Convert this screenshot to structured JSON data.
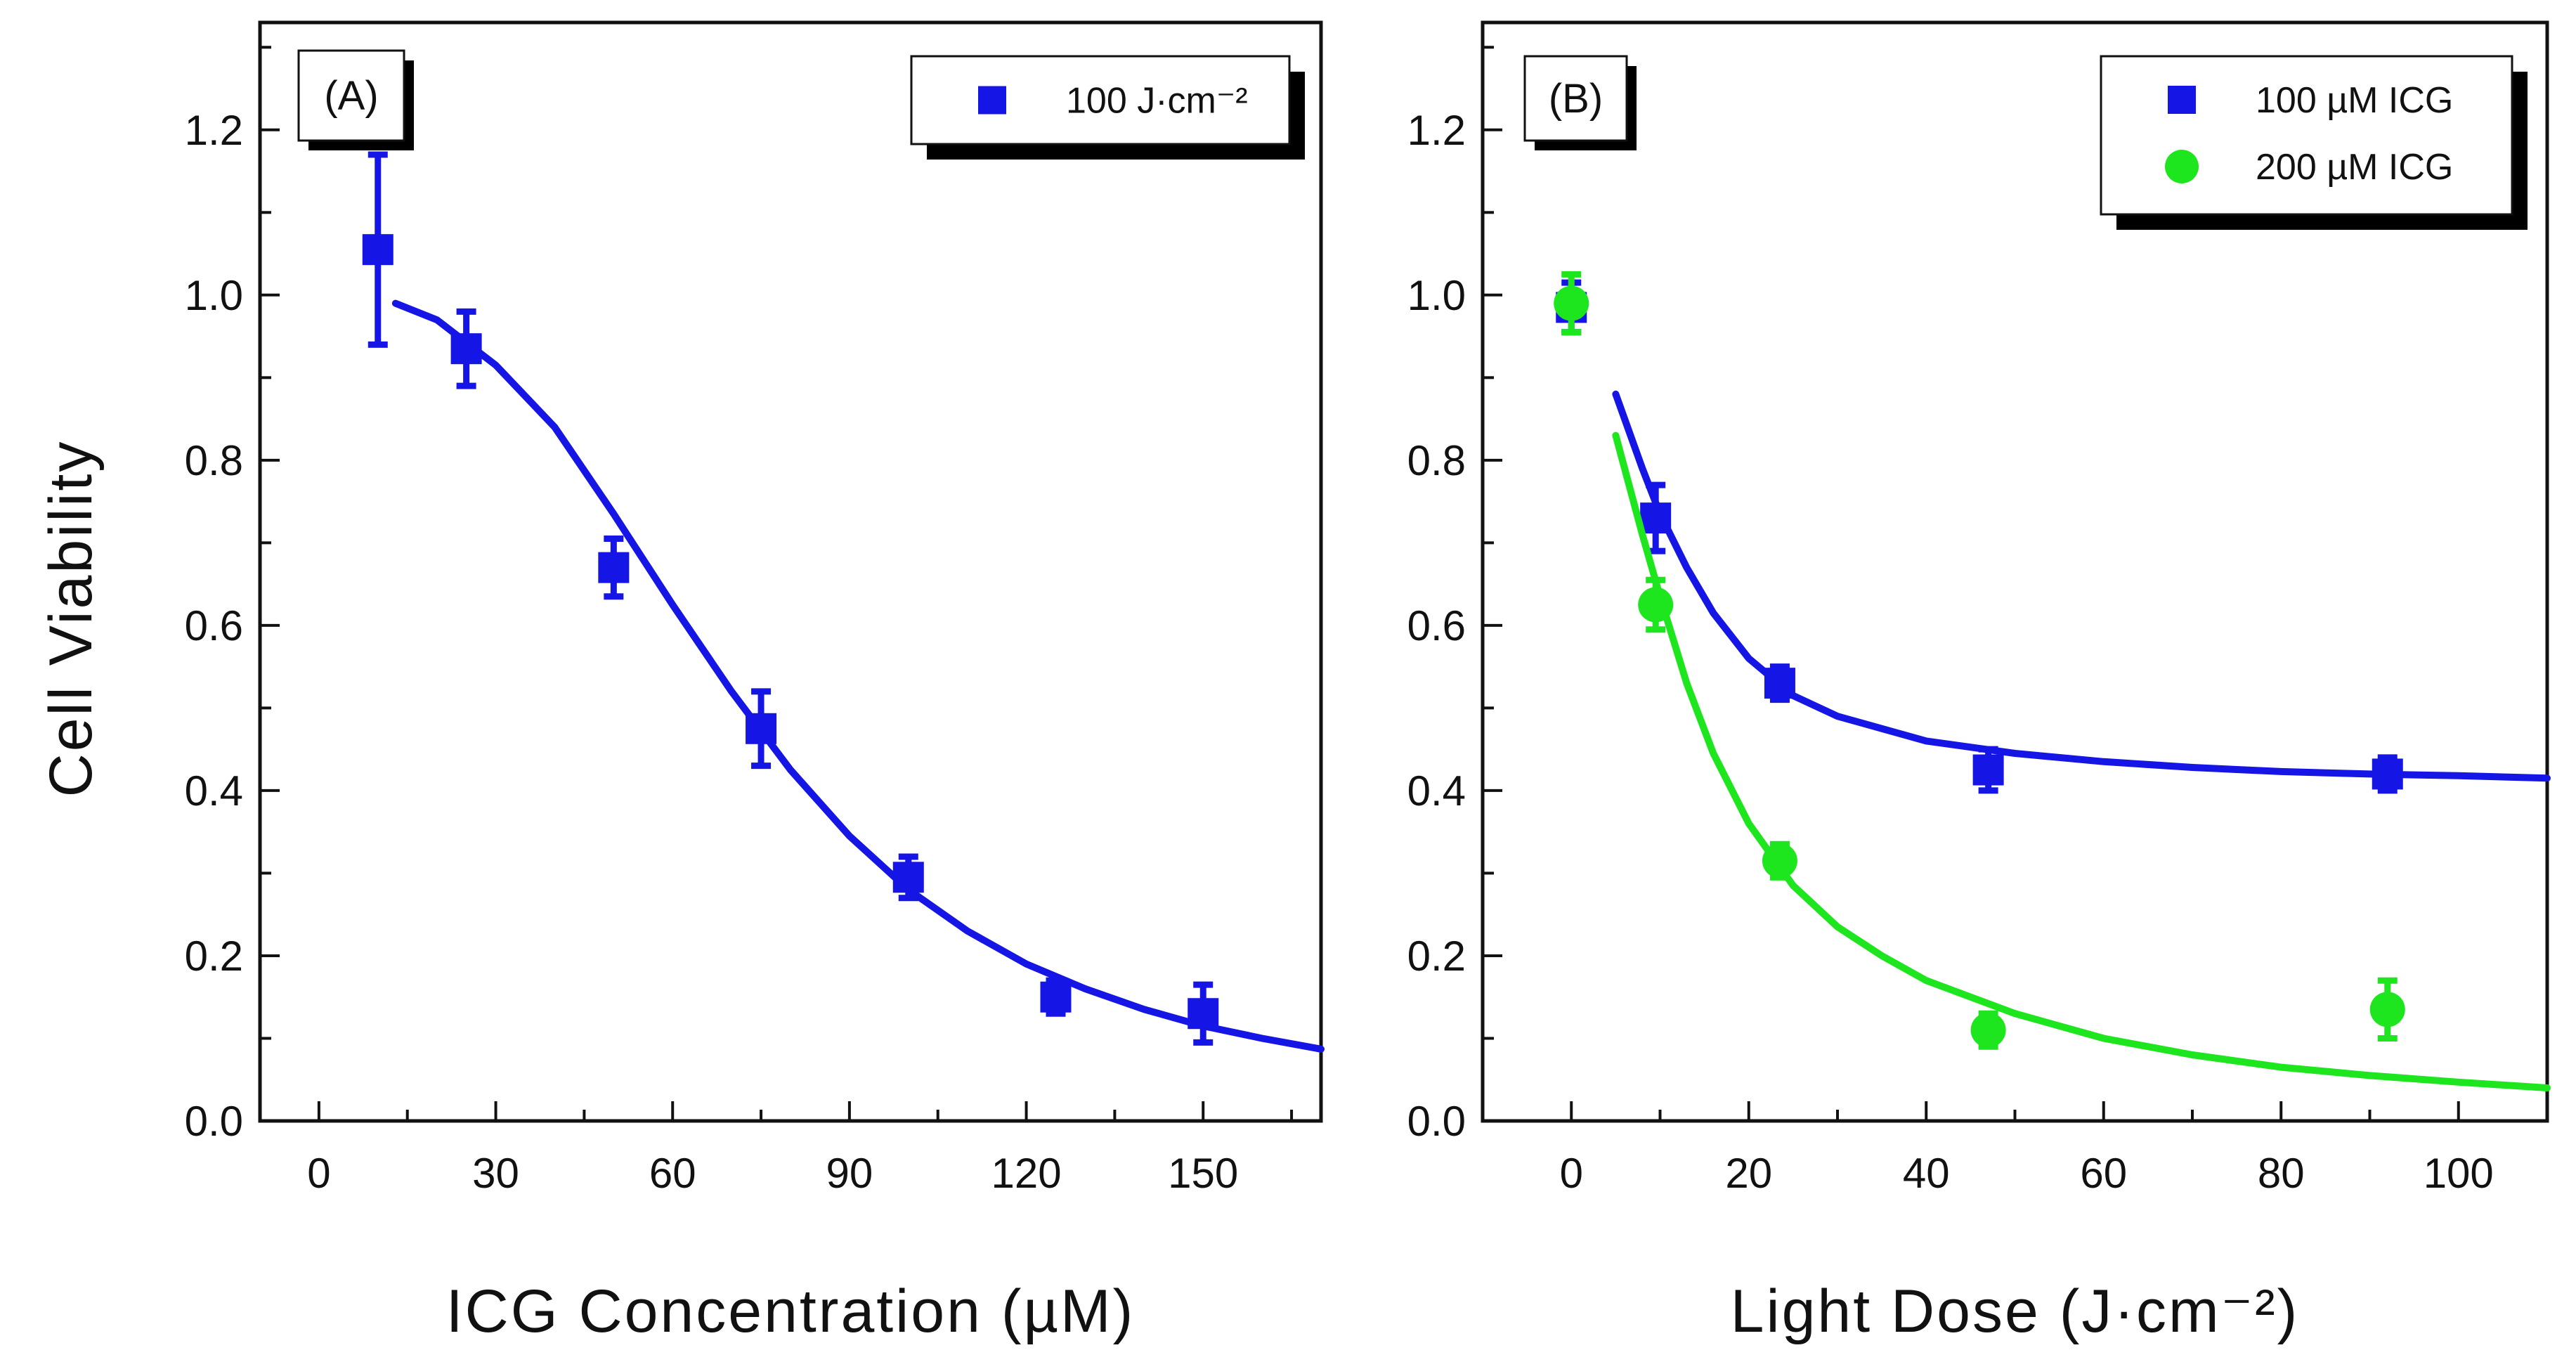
{
  "colors": {
    "blue": "#1515e6",
    "green": "#1ee61e",
    "axis": "#111111"
  },
  "ylabel": "Cell Viability",
  "chart_data": [
    {
      "type": "scatter",
      "panel_label": "(A)",
      "xlabel": "ICG Concentration (µM)",
      "ylabel": "Cell Viability",
      "xlim": [
        -10,
        170
      ],
      "ylim": [
        0,
        1.33
      ],
      "xticks": [
        0,
        30,
        60,
        90,
        120,
        150
      ],
      "yticks": [
        0.0,
        0.2,
        0.4,
        0.6,
        0.8,
        1.0,
        1.2
      ],
      "legend_position": "top-right",
      "series": [
        {
          "name": "100 J·cm⁻²",
          "marker": "square",
          "color": "#1515e6",
          "points": [
            {
              "x": 10,
              "y": 1.055,
              "err": 0.115
            },
            {
              "x": 25,
              "y": 0.935,
              "err": 0.045
            },
            {
              "x": 50,
              "y": 0.67,
              "err": 0.035
            },
            {
              "x": 75,
              "y": 0.475,
              "err": 0.045
            },
            {
              "x": 100,
              "y": 0.295,
              "err": 0.025
            },
            {
              "x": 125,
              "y": 0.15,
              "err": 0.02
            },
            {
              "x": 150,
              "y": 0.13,
              "err": 0.035
            }
          ],
          "fit": {
            "x": [
              13,
              20,
              30,
              40,
              50,
              60,
              70,
              80,
              90,
              100,
              110,
              120,
              130,
              140,
              150,
              160,
              170
            ],
            "y": [
              0.99,
              0.97,
              0.915,
              0.84,
              0.735,
              0.625,
              0.52,
              0.425,
              0.345,
              0.28,
              0.23,
              0.19,
              0.16,
              0.135,
              0.115,
              0.1,
              0.087
            ]
          }
        }
      ]
    },
    {
      "type": "scatter",
      "panel_label": "(B)",
      "xlabel": "Light Dose (J·cm⁻²)",
      "ylabel": "Cell Viability",
      "xlim": [
        -10,
        110
      ],
      "ylim": [
        0,
        1.33
      ],
      "xticks": [
        0,
        20,
        40,
        60,
        80,
        100
      ],
      "yticks": [
        0.0,
        0.2,
        0.4,
        0.6,
        0.8,
        1.0,
        1.2
      ],
      "legend_position": "top-right",
      "series": [
        {
          "name": "100 µM ICG",
          "marker": "square",
          "color": "#1515e6",
          "points": [
            {
              "x": 0,
              "y": 0.985,
              "err": 0.03
            },
            {
              "x": 9.5,
              "y": 0.73,
              "err": 0.04
            },
            {
              "x": 23.5,
              "y": 0.53,
              "err": 0.02
            },
            {
              "x": 47,
              "y": 0.425,
              "err": 0.025
            },
            {
              "x": 92,
              "y": 0.42,
              "err": 0.02
            }
          ],
          "fit": {
            "x": [
              5,
              8,
              10,
              13,
              16,
              20,
              25,
              30,
              40,
              50,
              60,
              70,
              80,
              90,
              100,
              110
            ],
            "y": [
              0.88,
              0.79,
              0.735,
              0.67,
              0.615,
              0.56,
              0.515,
              0.49,
              0.46,
              0.445,
              0.435,
              0.428,
              0.423,
              0.42,
              0.418,
              0.415
            ]
          }
        },
        {
          "name": "200 µM ICG",
          "marker": "circle",
          "color": "#1ee61e",
          "points": [
            {
              "x": 0,
              "y": 0.99,
              "err": 0.035
            },
            {
              "x": 9.5,
              "y": 0.625,
              "err": 0.03
            },
            {
              "x": 23.5,
              "y": 0.315,
              "err": 0.02
            },
            {
              "x": 47,
              "y": 0.11,
              "err": 0.02
            },
            {
              "x": 92,
              "y": 0.135,
              "err": 0.035
            }
          ],
          "fit": {
            "x": [
              5,
              8,
              10,
              13,
              16,
              20,
              25,
              30,
              35,
              40,
              50,
              60,
              70,
              80,
              90,
              100,
              110
            ],
            "y": [
              0.83,
              0.71,
              0.635,
              0.53,
              0.445,
              0.36,
              0.285,
              0.235,
              0.2,
              0.17,
              0.13,
              0.1,
              0.08,
              0.065,
              0.055,
              0.047,
              0.04
            ]
          }
        }
      ]
    }
  ]
}
